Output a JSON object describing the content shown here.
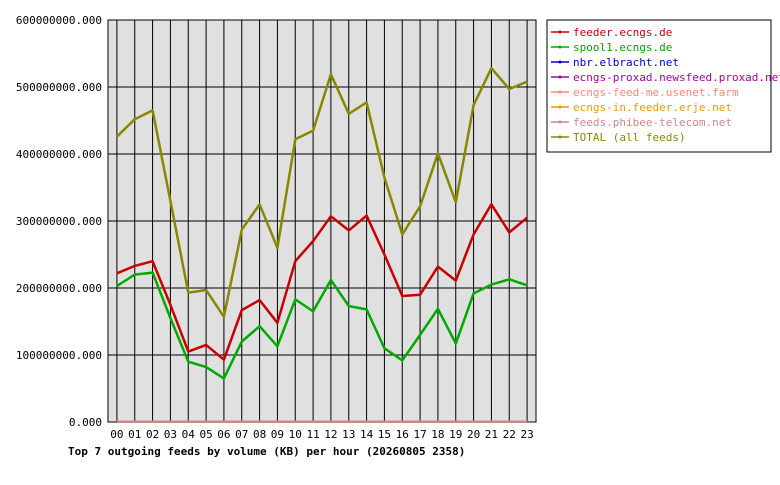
{
  "chart_data": {
    "type": "line",
    "title": "Top 7 outgoing feeds by volume (KB) per hour (20260805 2358)",
    "xlabel": "",
    "ylabel": "",
    "x": [
      "00",
      "01",
      "02",
      "03",
      "04",
      "05",
      "06",
      "07",
      "08",
      "09",
      "10",
      "11",
      "12",
      "13",
      "14",
      "15",
      "16",
      "17",
      "18",
      "19",
      "20",
      "21",
      "22",
      "23"
    ],
    "ylim": [
      0,
      600000000
    ],
    "yticks": [
      {
        "value": 0,
        "label": "0.000"
      },
      {
        "value": 100000000,
        "label": "100000000.000"
      },
      {
        "value": 200000000,
        "label": "200000000.000"
      },
      {
        "value": 300000000,
        "label": "300000000.000"
      },
      {
        "value": 400000000,
        "label": "400000000.000"
      },
      {
        "value": 500000000,
        "label": "500000000.000"
      },
      {
        "value": 600000000,
        "label": "600000000.000"
      }
    ],
    "grid": true,
    "legend_position": "top-right",
    "series": [
      {
        "name": "feeder.ecngs.de",
        "color": "#cc0000",
        "values": [
          222000000,
          233000000,
          240000000,
          175000000,
          105000000,
          115000000,
          93000000,
          167000000,
          182000000,
          148000000,
          240000000,
          270000000,
          307000000,
          286000000,
          308000000,
          250000000,
          188000000,
          190000000,
          232000000,
          211000000,
          280000000,
          325000000,
          283000000,
          305000000
        ]
      },
      {
        "name": "spool1.ecngs.de",
        "color": "#00aa00",
        "values": [
          203000000,
          220000000,
          223000000,
          155000000,
          90000000,
          82000000,
          65000000,
          120000000,
          143000000,
          113000000,
          183000000,
          165000000,
          212000000,
          173000000,
          168000000,
          110000000,
          92000000,
          130000000,
          169000000,
          117000000,
          192000000,
          205000000,
          213000000,
          204000000
        ]
      },
      {
        "name": "nbr.elbracht.net",
        "color": "#0000cc",
        "values": [
          300000,
          300000,
          300000,
          300000,
          300000,
          300000,
          300000,
          300000,
          300000,
          300000,
          300000,
          300000,
          300000,
          300000,
          300000,
          300000,
          300000,
          300000,
          300000,
          300000,
          300000,
          300000,
          300000,
          300000
        ]
      },
      {
        "name": "ecngs-proxad.newsfeed.proxad.net",
        "color": "#aa00aa",
        "values": [
          300000,
          300000,
          300000,
          300000,
          300000,
          300000,
          300000,
          300000,
          300000,
          300000,
          300000,
          300000,
          300000,
          300000,
          300000,
          300000,
          300000,
          300000,
          300000,
          300000,
          300000,
          300000,
          300000,
          300000
        ]
      },
      {
        "name": "ecngs-feed-me.usenet.farm",
        "color": "#ff8877",
        "values": [
          300000,
          300000,
          300000,
          300000,
          300000,
          300000,
          300000,
          300000,
          300000,
          300000,
          300000,
          300000,
          300000,
          300000,
          300000,
          300000,
          300000,
          300000,
          300000,
          300000,
          300000,
          300000,
          300000,
          300000
        ]
      },
      {
        "name": "ecngs-in.feeder.erje.net",
        "color": "#ee9900",
        "values": [
          300000,
          300000,
          300000,
          300000,
          300000,
          300000,
          300000,
          300000,
          300000,
          300000,
          300000,
          300000,
          300000,
          300000,
          300000,
          300000,
          300000,
          300000,
          300000,
          300000,
          300000,
          300000,
          300000,
          300000
        ]
      },
      {
        "name": "feeds.phibee-telecom.net",
        "color": "#cc8888",
        "values": [
          300000,
          300000,
          300000,
          300000,
          300000,
          300000,
          300000,
          300000,
          300000,
          300000,
          300000,
          300000,
          300000,
          300000,
          300000,
          300000,
          300000,
          300000,
          300000,
          300000,
          300000,
          300000,
          300000,
          300000
        ]
      },
      {
        "name": "TOTAL (all feeds)",
        "color": "#888800",
        "values": [
          426000000,
          452000000,
          465000000,
          330000000,
          193000000,
          197000000,
          157000000,
          287000000,
          325000000,
          260000000,
          422000000,
          435000000,
          519000000,
          460000000,
          477000000,
          365000000,
          280000000,
          322000000,
          401000000,
          328000000,
          473000000,
          528000000,
          497000000,
          508000000
        ]
      }
    ]
  }
}
